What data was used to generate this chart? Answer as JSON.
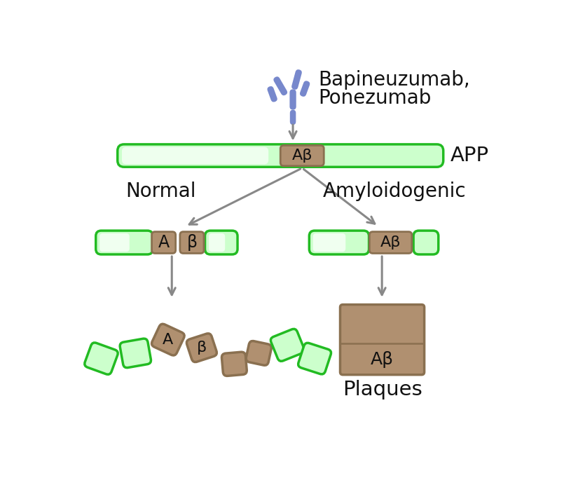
{
  "background_color": "#ffffff",
  "green_fill": "#ccffcc",
  "green_border": "#22bb22",
  "green_fill_dark": "#88ee88",
  "brown_fill": "#b09070",
  "brown_border": "#8a7050",
  "arrow_color": "#888888",
  "text_color": "#111111",
  "antibody_color": "#7788cc",
  "label_bapineu": "Bapineuzumab,",
  "label_ponezumab": "Ponezumab",
  "label_APP": "APP",
  "label_normal": "Normal",
  "label_amyloid": "Amyloidogenic",
  "label_plaques": "Plaques",
  "label_abeta": "Aβ",
  "label_A": "A",
  "label_beta": "β"
}
